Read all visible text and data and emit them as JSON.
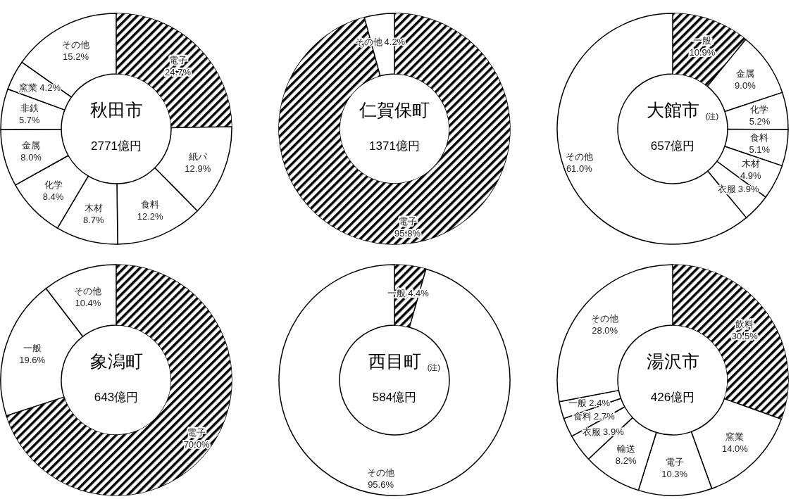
{
  "chart_data": [
    {
      "type": "donut",
      "title": "秋田市",
      "subtitle": "2771億円",
      "categories": [
        "電子",
        "紙パ",
        "食料",
        "木材",
        "化学",
        "金属",
        "非鉄",
        "窯業",
        "その他"
      ],
      "values": [
        24.7,
        12.9,
        12.2,
        8.7,
        8.4,
        8.0,
        5.7,
        4.2,
        15.2
      ],
      "value_labels": [
        "24.7%",
        "12.9%",
        "12.2%",
        "8.7%",
        "8.4%",
        "8.0%",
        "5.7%",
        "4.2%",
        "15.2%"
      ],
      "colors": [
        "#000000",
        "#ffffff",
        "#ffffff",
        "#ffffff",
        "#ffffff",
        "#ffffff",
        "#ffffff",
        "#ffffff",
        "#ffffff"
      ]
    },
    {
      "type": "donut",
      "title": "仁賀保町",
      "subtitle": "1371億円",
      "categories": [
        "電子",
        "その他"
      ],
      "values": [
        95.8,
        4.2
      ],
      "value_labels": [
        "95.8%",
        "4.2%"
      ],
      "colors": [
        "#000000",
        "#ffffff"
      ]
    },
    {
      "type": "donut",
      "title": "大館市",
      "subtitle": "657億円",
      "annotations": [
        "(注)"
      ],
      "categories": [
        "一般",
        "金属",
        "化学",
        "食料",
        "木材",
        "衣服",
        "その他"
      ],
      "values": [
        10.9,
        9.0,
        5.2,
        5.1,
        4.9,
        3.9,
        61.0
      ],
      "value_labels": [
        "10.9%",
        "9.0%",
        "5.2%",
        "5.1%",
        "4.9%",
        "3.9%",
        "61.0%"
      ],
      "colors": [
        "#000000",
        "#ffffff",
        "#ffffff",
        "#ffffff",
        "#ffffff",
        "#ffffff",
        "#ffffff"
      ]
    },
    {
      "type": "donut",
      "title": "象潟町",
      "subtitle": "643億円",
      "categories": [
        "電子",
        "一般",
        "その他"
      ],
      "values": [
        70.0,
        19.6,
        10.4
      ],
      "value_labels": [
        "70.0%",
        "19.6%",
        "10.4%"
      ],
      "colors": [
        "#000000",
        "#ffffff",
        "#ffffff"
      ]
    },
    {
      "type": "donut",
      "title": "西目町",
      "subtitle": "584億円",
      "annotations": [
        "(注)"
      ],
      "categories": [
        "一般",
        "その他"
      ],
      "values": [
        4.4,
        95.6
      ],
      "value_labels": [
        "4.4%",
        "95.6%"
      ],
      "colors": [
        "#000000",
        "#ffffff"
      ]
    },
    {
      "type": "donut",
      "title": "湯沢市",
      "subtitle": "426億円",
      "categories": [
        "飲料",
        "窯業",
        "電子",
        "輸送",
        "衣服",
        "食料",
        "一般",
        "その他"
      ],
      "values": [
        30.5,
        14.0,
        10.3,
        8.2,
        3.9,
        2.7,
        2.4,
        28.0
      ],
      "value_labels": [
        "30.5%",
        "14.0%",
        "10.3%",
        "8.2%",
        "3.9%",
        "2.7%",
        "2.4%",
        "28.0%"
      ],
      "colors": [
        "#000000",
        "#ffffff",
        "#ffffff",
        "#ffffff",
        "#ffffff",
        "#ffffff",
        "#ffffff",
        "#ffffff"
      ]
    }
  ]
}
